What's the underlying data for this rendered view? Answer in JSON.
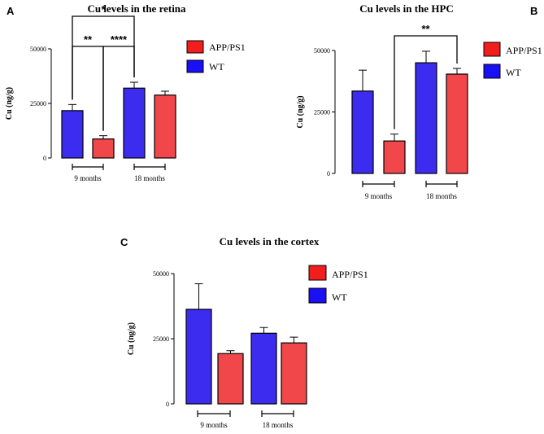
{
  "colors": {
    "wt": "#3b2cf0",
    "app": "#f2474a",
    "axis": "#000000",
    "wt_legend": "#1a10f5",
    "app_legend": "#f21d1d"
  },
  "chart_data": [
    {
      "type": "bar",
      "panel_label": "A",
      "title": "Cu levels in the retina",
      "ylabel": "Cu (ng/g)",
      "ylim": [
        0,
        50000
      ],
      "yticks": [
        "0",
        "25000",
        "50000"
      ],
      "groups": [
        "9 months",
        "18 months"
      ],
      "legend": [
        "APP/PS1",
        "WT"
      ],
      "bars": [
        {
          "series": "WT",
          "group": "9 months",
          "value": 21700,
          "error": 2800
        },
        {
          "series": "APP/PS1",
          "group": "9 months",
          "value": 8700,
          "error": 1500
        },
        {
          "series": "WT",
          "group": "18 months",
          "value": 32000,
          "error": 2700
        },
        {
          "series": "APP/PS1",
          "group": "18 months",
          "value": 28800,
          "error": 1800
        }
      ],
      "significance": [
        {
          "from": 0,
          "to": 2,
          "label": "*"
        },
        {
          "from": 0,
          "to": 1,
          "label": "**"
        },
        {
          "from": 1,
          "to": 2,
          "label": "****"
        }
      ]
    },
    {
      "type": "bar",
      "panel_label": "B",
      "title": "Cu levels in the HPC",
      "ylabel": "Cu (ng/g)",
      "ylim": [
        0,
        50000
      ],
      "yticks": [
        "0",
        "25000",
        "50000"
      ],
      "groups": [
        "9 months",
        "18 months"
      ],
      "legend": [
        "APP/PS1",
        "WT"
      ],
      "bars": [
        {
          "series": "WT",
          "group": "9 months",
          "value": 33500,
          "error": 8500
        },
        {
          "series": "APP/PS1",
          "group": "9 months",
          "value": 13200,
          "error": 2800
        },
        {
          "series": "WT",
          "group": "18 months",
          "value": 45000,
          "error": 4700
        },
        {
          "series": "APP/PS1",
          "group": "18 months",
          "value": 40400,
          "error": 2300
        }
      ],
      "significance": [
        {
          "from": 1,
          "to": 3,
          "label": "**"
        }
      ]
    },
    {
      "type": "bar",
      "panel_label": "C",
      "title": "Cu levels in the cortex",
      "ylabel": "Cu (ng/g)",
      "ylim": [
        0,
        50000
      ],
      "yticks": [
        "0",
        "25000",
        "50000"
      ],
      "groups": [
        "9 months",
        "18 months"
      ],
      "legend": [
        "APP/PS1",
        "WT"
      ],
      "bars": [
        {
          "series": "WT",
          "group": "9 months",
          "value": 36300,
          "error": 9800
        },
        {
          "series": "APP/PS1",
          "group": "9 months",
          "value": 19300,
          "error": 1100
        },
        {
          "series": "WT",
          "group": "18 months",
          "value": 27100,
          "error": 2200
        },
        {
          "series": "APP/PS1",
          "group": "18 months",
          "value": 23400,
          "error": 2200
        }
      ],
      "significance": []
    }
  ]
}
